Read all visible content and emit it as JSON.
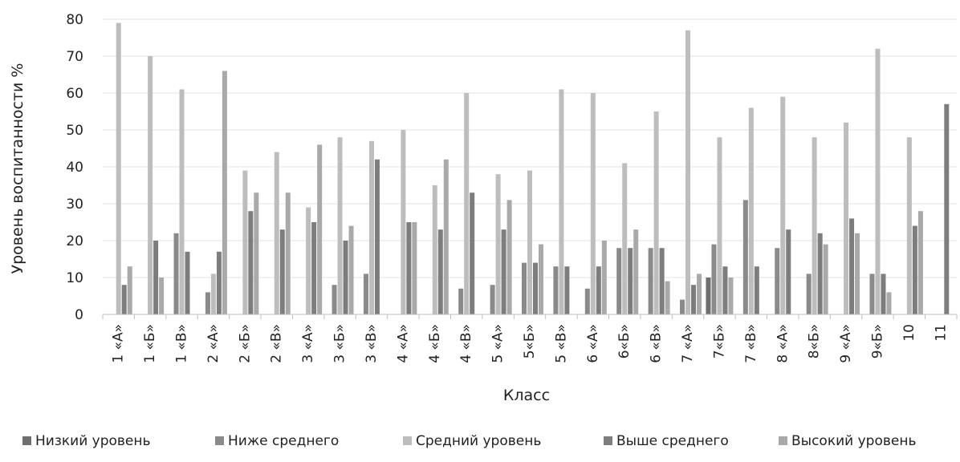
{
  "chart_data": {
    "type": "bar",
    "xlabel": "Класс",
    "ylabel": "Уровень воспитанности %",
    "ylim": [
      0,
      80
    ],
    "yticks": [
      0,
      10,
      20,
      30,
      40,
      50,
      60,
      70,
      80
    ],
    "grid": true,
    "legend_position": "bottom",
    "categories": [
      "1 «А»",
      "1 «Б»",
      "1 «В»",
      "2 «А»",
      "2 «Б»",
      "2 «В»",
      "3 «А»",
      "3 «Б»",
      "3 «В»",
      "4 «А»",
      "4 «Б»",
      "4 «В»",
      "5 «А»",
      "5«Б»",
      "5 «В»",
      "6 «А»",
      "6«Б»",
      "6 «В»",
      "7 «А»",
      "7«Б»",
      "7 «В»",
      "8 «А»",
      "8«Б»",
      "9 «А»",
      "9«Б»",
      "10",
      "11"
    ],
    "series": [
      {
        "name": "Низкий уровень",
        "color": "#6f6f6f",
        "values": [
          0,
          0,
          0,
          0,
          0,
          0,
          0,
          0,
          0,
          0,
          0,
          0,
          0,
          0,
          0,
          0,
          0,
          0,
          0,
          10,
          0,
          0,
          0,
          0,
          0,
          0,
          0
        ]
      },
      {
        "name": "Ниже среднего",
        "color": "#8a8a8a",
        "values": [
          0,
          0,
          22,
          6,
          0,
          0,
          0,
          8,
          11,
          0,
          0,
          7,
          8,
          14,
          13,
          7,
          18,
          18,
          4,
          19,
          31,
          18,
          11,
          0,
          11,
          0,
          0
        ]
      },
      {
        "name": "Средний уровень",
        "color": "#bdbdbd",
        "values": [
          79,
          70,
          61,
          11,
          39,
          44,
          29,
          48,
          47,
          50,
          35,
          60,
          38,
          39,
          61,
          60,
          41,
          55,
          77,
          48,
          56,
          59,
          48,
          52,
          72,
          48,
          0
        ]
      },
      {
        "name": "Выше среднего",
        "color": "#7d7d7d",
        "values": [
          8,
          20,
          17,
          17,
          28,
          23,
          25,
          20,
          42,
          25,
          23,
          33,
          23,
          14,
          13,
          13,
          18,
          18,
          8,
          13,
          13,
          23,
          22,
          26,
          11,
          24,
          57
        ]
      },
      {
        "name": "Высокий уровень",
        "color": "#a9a9a9",
        "values": [
          13,
          10,
          0,
          66,
          33,
          33,
          46,
          24,
          0,
          25,
          42,
          0,
          31,
          19,
          0,
          20,
          23,
          9,
          11,
          10,
          0,
          0,
          19,
          22,
          6,
          28,
          0
        ]
      }
    ]
  }
}
